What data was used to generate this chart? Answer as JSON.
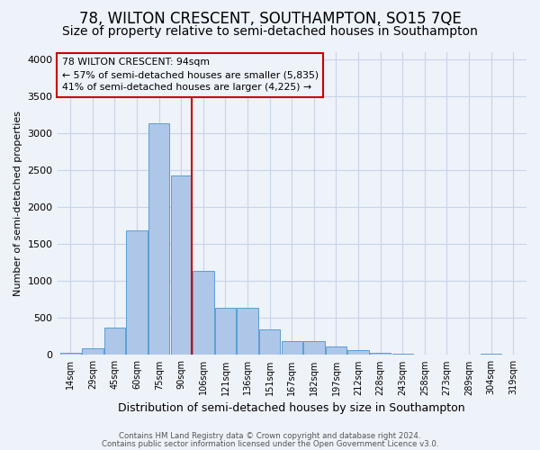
{
  "title": "78, WILTON CRESCENT, SOUTHAMPTON, SO15 7QE",
  "subtitle": "Size of property relative to semi-detached houses in Southampton",
  "xlabel": "Distribution of semi-detached houses by size in Southampton",
  "ylabel": "Number of semi-detached properties",
  "footer1": "Contains HM Land Registry data © Crown copyright and database right 2024.",
  "footer2": "Contains public sector information licensed under the Open Government Licence v3.0.",
  "bar_labels": [
    "14sqm",
    "29sqm",
    "45sqm",
    "60sqm",
    "75sqm",
    "90sqm",
    "106sqm",
    "121sqm",
    "136sqm",
    "151sqm",
    "167sqm",
    "182sqm",
    "197sqm",
    "212sqm",
    "228sqm",
    "243sqm",
    "258sqm",
    "273sqm",
    "289sqm",
    "304sqm",
    "319sqm"
  ],
  "bar_values": [
    30,
    85,
    370,
    1680,
    3130,
    2430,
    1140,
    635,
    635,
    340,
    185,
    185,
    115,
    60,
    30,
    20,
    5,
    5,
    0,
    20,
    0
  ],
  "bar_color": "#aec6e8",
  "bar_edge_color": "#5a9fd4",
  "vline_color": "#cc0000",
  "annotation_box_edge_color": "#cc0000",
  "bg_color": "#eef2f9",
  "ylim": [
    0,
    4100
  ],
  "yticks": [
    0,
    500,
    1000,
    1500,
    2000,
    2500,
    3000,
    3500,
    4000
  ],
  "grid_color": "#c8d4e8",
  "title_fontsize": 12,
  "subtitle_fontsize": 10,
  "annotation_text_line1": "78 WILTON CRESCENT: 94sqm",
  "annotation_text_line2": "← 57% of semi-detached houses are smaller (5,835)",
  "annotation_text_line3": "41% of semi-detached houses are larger (4,225) →",
  "pct_smaller": 57,
  "n_smaller": 5835,
  "pct_larger": 41,
  "n_larger": 4225,
  "vline_x": 5.48
}
